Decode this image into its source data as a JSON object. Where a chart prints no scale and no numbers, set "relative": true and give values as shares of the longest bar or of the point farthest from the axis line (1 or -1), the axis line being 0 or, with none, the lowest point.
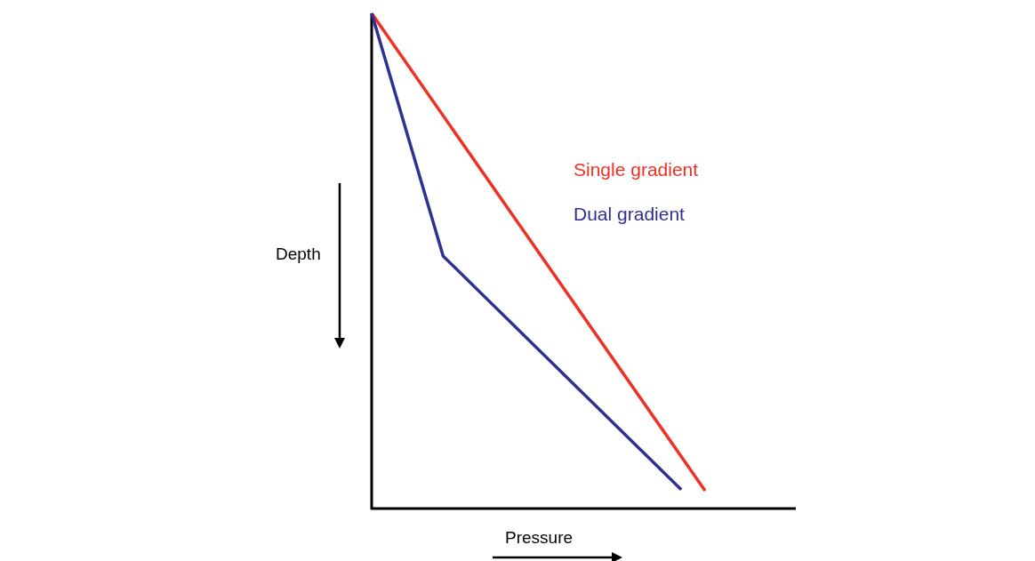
{
  "chart_data": {
    "type": "line",
    "relative": true,
    "xlabel": "Pressure",
    "ylabel": "Depth",
    "categories": [
      null,
      null,
      null,
      null,
      null,
      null,
      null,
      null,
      null,
      null,
      null,
      null,
      null,
      null,
      null
    ],
    "series": [
      {
        "name": "Single gradient",
        "color": "#ee3124",
        "values": [
          1,
          null,
          null,
          null,
          null,
          null,
          null,
          null,
          null,
          null,
          null,
          null,
          null,
          null,
          0.036
        ]
      },
      {
        "name": "Dual gradient",
        "color": "#2e3192",
        "values": [
          1,
          null,
          null,
          0.51,
          null,
          null,
          null,
          null,
          null,
          null,
          null,
          null,
          null,
          0.038,
          null
        ]
      }
    ]
  }
}
